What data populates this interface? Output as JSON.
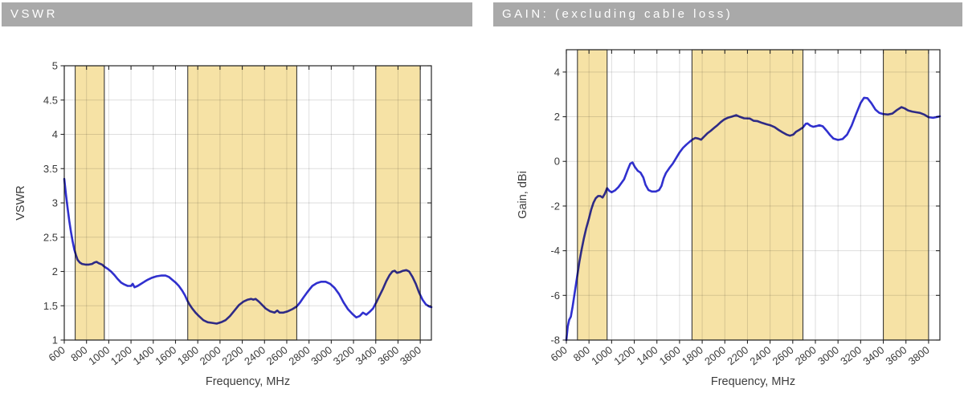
{
  "colors": {
    "header_bg": "#a9a9a9",
    "header_text": "#ffffff",
    "band_fill": "#f6e2a5",
    "band_edge": "#3a3a3a",
    "grid": "rgba(0,0,0,0.13)",
    "axis": "#262626",
    "tick_text": "#3a3a3a",
    "line": "#3030cf"
  },
  "headers": [
    {
      "id": "vswr",
      "label": "VSWR"
    },
    {
      "id": "gain",
      "label": "GAIN: (excluding cable loss)"
    }
  ],
  "chart_data": [
    {
      "type": "line",
      "title": "VSWR",
      "xlabel": "Frequency, MHz",
      "ylabel": "VSWR",
      "xlim": [
        600,
        3900
      ],
      "ylim": [
        1,
        5
      ],
      "xticks": [
        600,
        800,
        1000,
        1200,
        1400,
        1600,
        1800,
        2000,
        2200,
        2400,
        2600,
        2800,
        3000,
        3200,
        3400,
        3600,
        3800
      ],
      "yticks": [
        1,
        1.5,
        2,
        2.5,
        3,
        3.5,
        4,
        4.5,
        5
      ],
      "grid": true,
      "legend": "none",
      "bands": [
        [
          698,
          960
        ],
        [
          1710,
          2690
        ],
        [
          3400,
          3800
        ]
      ],
      "series": [
        {
          "name": "VSWR",
          "points": [
            [
              600,
              3.35
            ],
            [
              615,
              3.12
            ],
            [
              630,
              2.92
            ],
            [
              645,
              2.74
            ],
            [
              660,
              2.58
            ],
            [
              675,
              2.44
            ],
            [
              690,
              2.32
            ],
            [
              705,
              2.24
            ],
            [
              720,
              2.17
            ],
            [
              740,
              2.13
            ],
            [
              760,
              2.11
            ],
            [
              790,
              2.1
            ],
            [
              820,
              2.1
            ],
            [
              850,
              2.11
            ],
            [
              870,
              2.13
            ],
            [
              890,
              2.14
            ],
            [
              910,
              2.12
            ],
            [
              940,
              2.1
            ],
            [
              960,
              2.07
            ],
            [
              990,
              2.04
            ],
            [
              1020,
              2.0
            ],
            [
              1050,
              1.95
            ],
            [
              1080,
              1.89
            ],
            [
              1110,
              1.84
            ],
            [
              1140,
              1.81
            ],
            [
              1170,
              1.79
            ],
            [
              1200,
              1.79
            ],
            [
              1215,
              1.82
            ],
            [
              1232,
              1.77
            ],
            [
              1260,
              1.79
            ],
            [
              1290,
              1.82
            ],
            [
              1320,
              1.85
            ],
            [
              1350,
              1.88
            ],
            [
              1390,
              1.91
            ],
            [
              1430,
              1.93
            ],
            [
              1470,
              1.94
            ],
            [
              1510,
              1.94
            ],
            [
              1540,
              1.92
            ],
            [
              1570,
              1.88
            ],
            [
              1600,
              1.84
            ],
            [
              1630,
              1.79
            ],
            [
              1660,
              1.72
            ],
            [
              1685,
              1.65
            ],
            [
              1705,
              1.58
            ],
            [
              1725,
              1.52
            ],
            [
              1750,
              1.46
            ],
            [
              1780,
              1.4
            ],
            [
              1810,
              1.35
            ],
            [
              1850,
              1.29
            ],
            [
              1890,
              1.26
            ],
            [
              1930,
              1.25
            ],
            [
              1970,
              1.24
            ],
            [
              2010,
              1.26
            ],
            [
              2050,
              1.29
            ],
            [
              2090,
              1.35
            ],
            [
              2130,
              1.43
            ],
            [
              2170,
              1.51
            ],
            [
              2210,
              1.56
            ],
            [
              2250,
              1.59
            ],
            [
              2280,
              1.6
            ],
            [
              2300,
              1.59
            ],
            [
              2320,
              1.6
            ],
            [
              2350,
              1.56
            ],
            [
              2380,
              1.51
            ],
            [
              2410,
              1.46
            ],
            [
              2450,
              1.42
            ],
            [
              2490,
              1.4
            ],
            [
              2515,
              1.43
            ],
            [
              2535,
              1.4
            ],
            [
              2570,
              1.4
            ],
            [
              2610,
              1.42
            ],
            [
              2650,
              1.45
            ],
            [
              2690,
              1.49
            ],
            [
              2720,
              1.55
            ],
            [
              2750,
              1.62
            ],
            [
              2790,
              1.71
            ],
            [
              2830,
              1.79
            ],
            [
              2870,
              1.83
            ],
            [
              2910,
              1.85
            ],
            [
              2950,
              1.85
            ],
            [
              2990,
              1.82
            ],
            [
              3030,
              1.76
            ],
            [
              3070,
              1.67
            ],
            [
              3110,
              1.55
            ],
            [
              3150,
              1.45
            ],
            [
              3190,
              1.38
            ],
            [
              3225,
              1.33
            ],
            [
              3255,
              1.35
            ],
            [
              3285,
              1.4
            ],
            [
              3315,
              1.37
            ],
            [
              3345,
              1.41
            ],
            [
              3375,
              1.46
            ],
            [
              3405,
              1.55
            ],
            [
              3435,
              1.65
            ],
            [
              3465,
              1.75
            ],
            [
              3495,
              1.86
            ],
            [
              3525,
              1.95
            ],
            [
              3550,
              2.0
            ],
            [
              3570,
              2.01
            ],
            [
              3590,
              1.98
            ],
            [
              3615,
              1.99
            ],
            [
              3645,
              2.01
            ],
            [
              3675,
              2.02
            ],
            [
              3700,
              2.0
            ],
            [
              3730,
              1.92
            ],
            [
              3760,
              1.82
            ],
            [
              3790,
              1.69
            ],
            [
              3820,
              1.59
            ],
            [
              3850,
              1.52
            ],
            [
              3880,
              1.49
            ],
            [
              3900,
              1.48
            ]
          ]
        }
      ]
    },
    {
      "type": "line",
      "title": "GAIN: (excluding cable loss)",
      "xlabel": "Frequency, MHz",
      "ylabel": "Gain, dBi",
      "xlim": [
        600,
        3900
      ],
      "ylim": [
        -8,
        5
      ],
      "xticks": [
        600,
        800,
        1000,
        1200,
        1400,
        1600,
        1800,
        2000,
        2200,
        2400,
        2600,
        2800,
        3000,
        3200,
        3400,
        3600,
        3800
      ],
      "yticks": [
        -8,
        -6,
        -4,
        -2,
        0,
        2,
        4
      ],
      "grid": true,
      "legend": "none",
      "bands": [
        [
          698,
          960
        ],
        [
          1710,
          2690
        ],
        [
          3400,
          3800
        ]
      ],
      "series": [
        {
          "name": "Gain",
          "points": [
            [
              600,
              -8.0
            ],
            [
              612,
              -7.4
            ],
            [
              625,
              -7.1
            ],
            [
              640,
              -6.95
            ],
            [
              655,
              -6.5
            ],
            [
              670,
              -6.0
            ],
            [
              685,
              -5.5
            ],
            [
              700,
              -5.0
            ],
            [
              715,
              -4.5
            ],
            [
              735,
              -3.95
            ],
            [
              755,
              -3.45
            ],
            [
              775,
              -3.0
            ],
            [
              800,
              -2.55
            ],
            [
              820,
              -2.15
            ],
            [
              840,
              -1.85
            ],
            [
              860,
              -1.65
            ],
            [
              880,
              -1.55
            ],
            [
              900,
              -1.55
            ],
            [
              920,
              -1.62
            ],
            [
              940,
              -1.45
            ],
            [
              960,
              -1.2
            ],
            [
              980,
              -1.32
            ],
            [
              1000,
              -1.38
            ],
            [
              1030,
              -1.3
            ],
            [
              1060,
              -1.15
            ],
            [
              1085,
              -0.98
            ],
            [
              1110,
              -0.8
            ],
            [
              1140,
              -0.4
            ],
            [
              1165,
              -0.1
            ],
            [
              1185,
              -0.05
            ],
            [
              1205,
              -0.25
            ],
            [
              1230,
              -0.42
            ],
            [
              1255,
              -0.5
            ],
            [
              1280,
              -0.72
            ],
            [
              1300,
              -1.05
            ],
            [
              1325,
              -1.28
            ],
            [
              1355,
              -1.35
            ],
            [
              1390,
              -1.35
            ],
            [
              1420,
              -1.28
            ],
            [
              1440,
              -1.1
            ],
            [
              1460,
              -0.75
            ],
            [
              1480,
              -0.52
            ],
            [
              1510,
              -0.3
            ],
            [
              1540,
              -0.1
            ],
            [
              1570,
              0.15
            ],
            [
              1600,
              0.4
            ],
            [
              1630,
              0.6
            ],
            [
              1660,
              0.75
            ],
            [
              1690,
              0.88
            ],
            [
              1715,
              0.98
            ],
            [
              1740,
              1.05
            ],
            [
              1765,
              1.02
            ],
            [
              1790,
              0.97
            ],
            [
              1815,
              1.1
            ],
            [
              1845,
              1.25
            ],
            [
              1875,
              1.37
            ],
            [
              1905,
              1.5
            ],
            [
              1935,
              1.62
            ],
            [
              1965,
              1.76
            ],
            [
              1995,
              1.88
            ],
            [
              2025,
              1.95
            ],
            [
              2060,
              2.0
            ],
            [
              2100,
              2.07
            ],
            [
              2130,
              2.0
            ],
            [
              2170,
              1.93
            ],
            [
              2220,
              1.92
            ],
            [
              2255,
              1.82
            ],
            [
              2290,
              1.8
            ],
            [
              2330,
              1.72
            ],
            [
              2370,
              1.66
            ],
            [
              2400,
              1.62
            ],
            [
              2440,
              1.53
            ],
            [
              2475,
              1.41
            ],
            [
              2510,
              1.3
            ],
            [
              2545,
              1.2
            ],
            [
              2575,
              1.15
            ],
            [
              2605,
              1.2
            ],
            [
              2630,
              1.33
            ],
            [
              2660,
              1.42
            ],
            [
              2690,
              1.52
            ],
            [
              2715,
              1.68
            ],
            [
              2730,
              1.7
            ],
            [
              2755,
              1.6
            ],
            [
              2780,
              1.55
            ],
            [
              2810,
              1.58
            ],
            [
              2835,
              1.62
            ],
            [
              2865,
              1.57
            ],
            [
              2900,
              1.37
            ],
            [
              2930,
              1.18
            ],
            [
              2960,
              1.02
            ],
            [
              3000,
              0.96
            ],
            [
              3040,
              1.0
            ],
            [
              3080,
              1.2
            ],
            [
              3120,
              1.6
            ],
            [
              3160,
              2.12
            ],
            [
              3200,
              2.62
            ],
            [
              3230,
              2.85
            ],
            [
              3260,
              2.83
            ],
            [
              3295,
              2.6
            ],
            [
              3330,
              2.32
            ],
            [
              3365,
              2.17
            ],
            [
              3400,
              2.12
            ],
            [
              3440,
              2.1
            ],
            [
              3480,
              2.14
            ],
            [
              3520,
              2.3
            ],
            [
              3560,
              2.43
            ],
            [
              3590,
              2.37
            ],
            [
              3620,
              2.28
            ],
            [
              3655,
              2.23
            ],
            [
              3690,
              2.2
            ],
            [
              3725,
              2.17
            ],
            [
              3760,
              2.1
            ],
            [
              3800,
              1.98
            ],
            [
              3840,
              1.95
            ],
            [
              3875,
              1.99
            ],
            [
              3900,
              2.02
            ]
          ]
        }
      ]
    }
  ]
}
